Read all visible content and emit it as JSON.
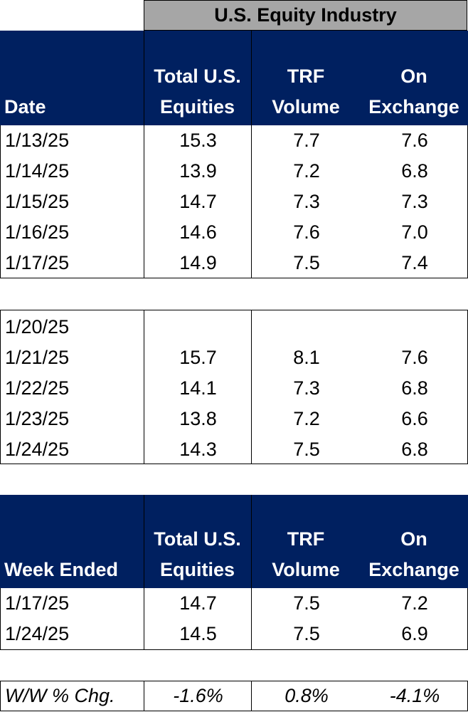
{
  "super_header": "U.S. Equity Industry",
  "header1": {
    "col0": "Date",
    "col1_line1": "Total U.S.",
    "col1_line2": "Equities",
    "col2_line1": "TRF",
    "col2_line2": "Volume",
    "col3_line1": "On",
    "col3_line2": "Exchange"
  },
  "week1": [
    {
      "date": "1/13/25",
      "total": "15.3",
      "trf": "7.7",
      "exchange": "7.6"
    },
    {
      "date": "1/14/25",
      "total": "13.9",
      "trf": "7.2",
      "exchange": "6.8"
    },
    {
      "date": "1/15/25",
      "total": "14.7",
      "trf": "7.3",
      "exchange": "7.3"
    },
    {
      "date": "1/16/25",
      "total": "14.6",
      "trf": "7.6",
      "exchange": "7.0"
    },
    {
      "date": "1/17/25",
      "total": "14.9",
      "trf": "7.5",
      "exchange": "7.4"
    }
  ],
  "week2": [
    {
      "date": "1/20/25",
      "total": "",
      "trf": "",
      "exchange": ""
    },
    {
      "date": "1/21/25",
      "total": "15.7",
      "trf": "8.1",
      "exchange": "7.6"
    },
    {
      "date": "1/22/25",
      "total": "14.1",
      "trf": "7.3",
      "exchange": "6.8"
    },
    {
      "date": "1/23/25",
      "total": "13.8",
      "trf": "7.2",
      "exchange": "6.6"
    },
    {
      "date": "1/24/25",
      "total": "14.3",
      "trf": "7.5",
      "exchange": "6.8"
    }
  ],
  "header2": {
    "col0": "Week Ended",
    "col1_line1": "Total U.S.",
    "col1_line2": "Equities",
    "col2_line1": "TRF",
    "col2_line2": "Volume",
    "col3_line1": "On",
    "col3_line2": "Exchange"
  },
  "weekly": [
    {
      "date": "1/17/25",
      "total": "14.7",
      "trf": "7.5",
      "exchange": "7.2"
    },
    {
      "date": "1/24/25",
      "total": "14.5",
      "trf": "7.5",
      "exchange": "6.9"
    }
  ],
  "change": {
    "label": "W/W % Chg.",
    "total": "-1.6%",
    "trf": "0.8%",
    "exchange": "-4.1%"
  },
  "colors": {
    "header_bg": "#002060",
    "super_header_bg": "#a6a6a6"
  }
}
